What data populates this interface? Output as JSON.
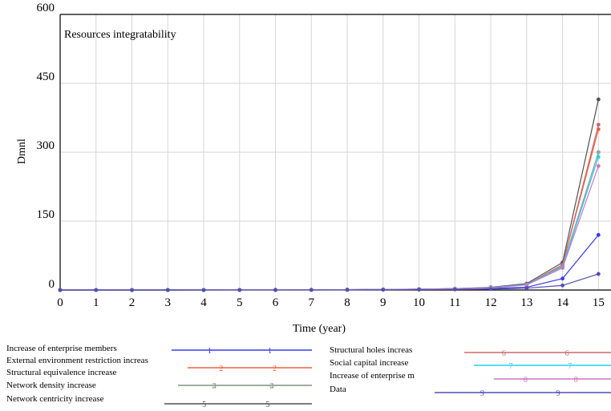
{
  "chart_data": {
    "type": "line",
    "title": "Resources integratability",
    "xlabel": "Time (year)",
    "ylabel": "Dmnl",
    "xlim": [
      0,
      15
    ],
    "ylim": [
      0,
      600
    ],
    "x_ticks": [
      "0",
      "1",
      "2",
      "3",
      "4",
      "5",
      "6",
      "7",
      "8",
      "9",
      "10",
      "11",
      "12",
      "13",
      "14",
      "15"
    ],
    "y_ticks": [
      "0",
      "150",
      "300",
      "450",
      "600"
    ],
    "grid": true,
    "legend_position": "bottom",
    "x": [
      0,
      1,
      2,
      3,
      4,
      5,
      6,
      7,
      8,
      9,
      10,
      11,
      12,
      13,
      14,
      15
    ],
    "series": [
      {
        "name": "Increase of enterprise members",
        "marker": "1",
        "color": "#3a3af0",
        "values": [
          0,
          0,
          0,
          0,
          0.1,
          0.2,
          0.3,
          0.4,
          0.6,
          0.9,
          1.3,
          2,
          3.5,
          6,
          25,
          120
        ]
      },
      {
        "name": "External environment restriction increase",
        "marker": "2",
        "color": "#f0603a",
        "values": [
          0,
          0,
          0,
          0,
          0.1,
          0.2,
          0.3,
          0.5,
          0.8,
          1.2,
          1.8,
          2.8,
          5,
          12,
          55,
          350
        ]
      },
      {
        "name": "Structural equivalence increase",
        "marker": "3",
        "color": "#2fa84a",
        "values": [
          0,
          0,
          0,
          0,
          0.1,
          0.2,
          0.3,
          0.5,
          0.8,
          1.2,
          1.8,
          2.8,
          5,
          12,
          52,
          300
        ]
      },
      {
        "name": "Network density increase",
        "marker": "4",
        "color": "#a0a0a0",
        "values": [
          0,
          0,
          0,
          0,
          0.1,
          0.2,
          0.3,
          0.5,
          0.8,
          1.2,
          1.8,
          2.8,
          5,
          12,
          52,
          300
        ]
      },
      {
        "name": "Network centricity increase",
        "marker": "5",
        "color": "#505050",
        "values": [
          0,
          0,
          0,
          0,
          0.1,
          0.2,
          0.3,
          0.5,
          0.8,
          1.3,
          2,
          3,
          6,
          14,
          60,
          415
        ]
      },
      {
        "name": "Structural holes increase",
        "marker": "6",
        "color": "#c86a6a",
        "values": [
          0,
          0,
          0,
          0,
          0.1,
          0.2,
          0.3,
          0.5,
          0.8,
          1.2,
          1.8,
          2.8,
          5,
          12,
          55,
          360
        ]
      },
      {
        "name": "Social capital increase",
        "marker": "7",
        "color": "#22d0f0",
        "values": [
          0,
          0,
          0,
          0,
          0.1,
          0.2,
          0.3,
          0.5,
          0.8,
          1.2,
          1.8,
          2.8,
          5,
          12,
          50,
          290
        ]
      },
      {
        "name": "Increase of enterprise m",
        "marker": "8",
        "color": "#c876c8",
        "values": [
          0,
          0,
          0,
          0,
          0.1,
          0.2,
          0.3,
          0.5,
          0.8,
          1.2,
          1.8,
          2.6,
          4.5,
          11,
          48,
          270
        ]
      },
      {
        "name": "Data",
        "marker": "9",
        "color": "#5050b0",
        "values": [
          0,
          0,
          0,
          0,
          0,
          0.1,
          0.1,
          0.2,
          0.3,
          0.5,
          0.8,
          1.2,
          2,
          4,
          10,
          35
        ]
      }
    ],
    "legend_labels": [
      "Increase of enterprise members",
      "External environment restriction increas",
      "Structural equivalence increase",
      "Network density increase",
      "Network centricity increase",
      "Structural holes increas",
      "Social capital increase",
      "Increase of enterprise m",
      "Data"
    ]
  }
}
